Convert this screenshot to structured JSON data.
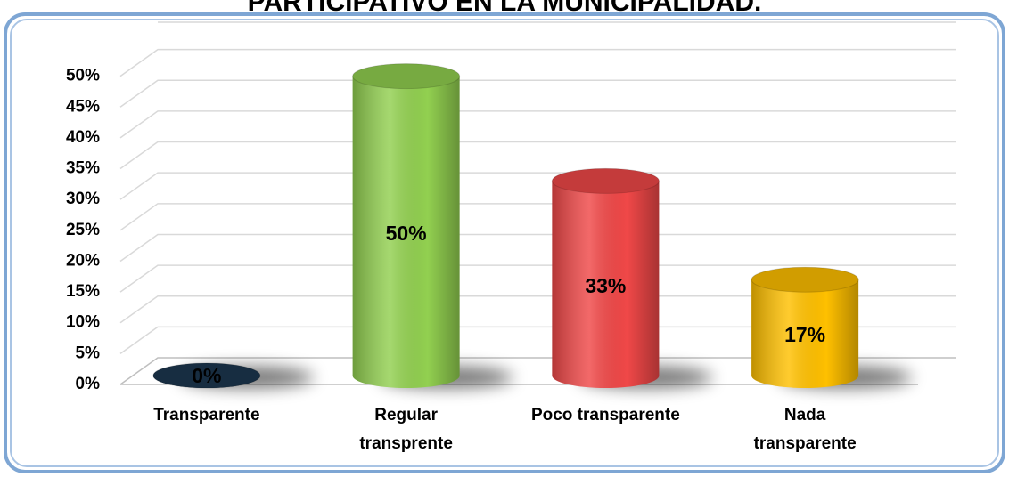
{
  "chart_data": {
    "type": "cylinder-bar",
    "title": "PARTICIPATIVO EN LA MUNICIPALIDAD.",
    "categories": [
      "Transparente",
      "Regular\ntransprente",
      "Poco transparente",
      "Nada\ntransparente"
    ],
    "values": [
      0,
      50,
      33,
      17
    ],
    "value_labels": [
      "0%",
      "50%",
      "33%",
      "17%"
    ],
    "colors": [
      "#1d3850",
      "#92d050",
      "#f04848",
      "#ffc000"
    ],
    "ylim": [
      0,
      55
    ],
    "yticks": [
      {
        "value": 0,
        "label": "0%"
      },
      {
        "value": 5,
        "label": "5%"
      },
      {
        "value": 10,
        "label": "10%"
      },
      {
        "value": 15,
        "label": "15%"
      },
      {
        "value": 20,
        "label": "20%"
      },
      {
        "value": 25,
        "label": "25%"
      },
      {
        "value": 30,
        "label": "30%"
      },
      {
        "value": 35,
        "label": "35%"
      },
      {
        "value": 40,
        "label": "40%"
      },
      {
        "value": 45,
        "label": "45%"
      },
      {
        "value": 50,
        "label": "50%"
      }
    ],
    "grid": true
  }
}
